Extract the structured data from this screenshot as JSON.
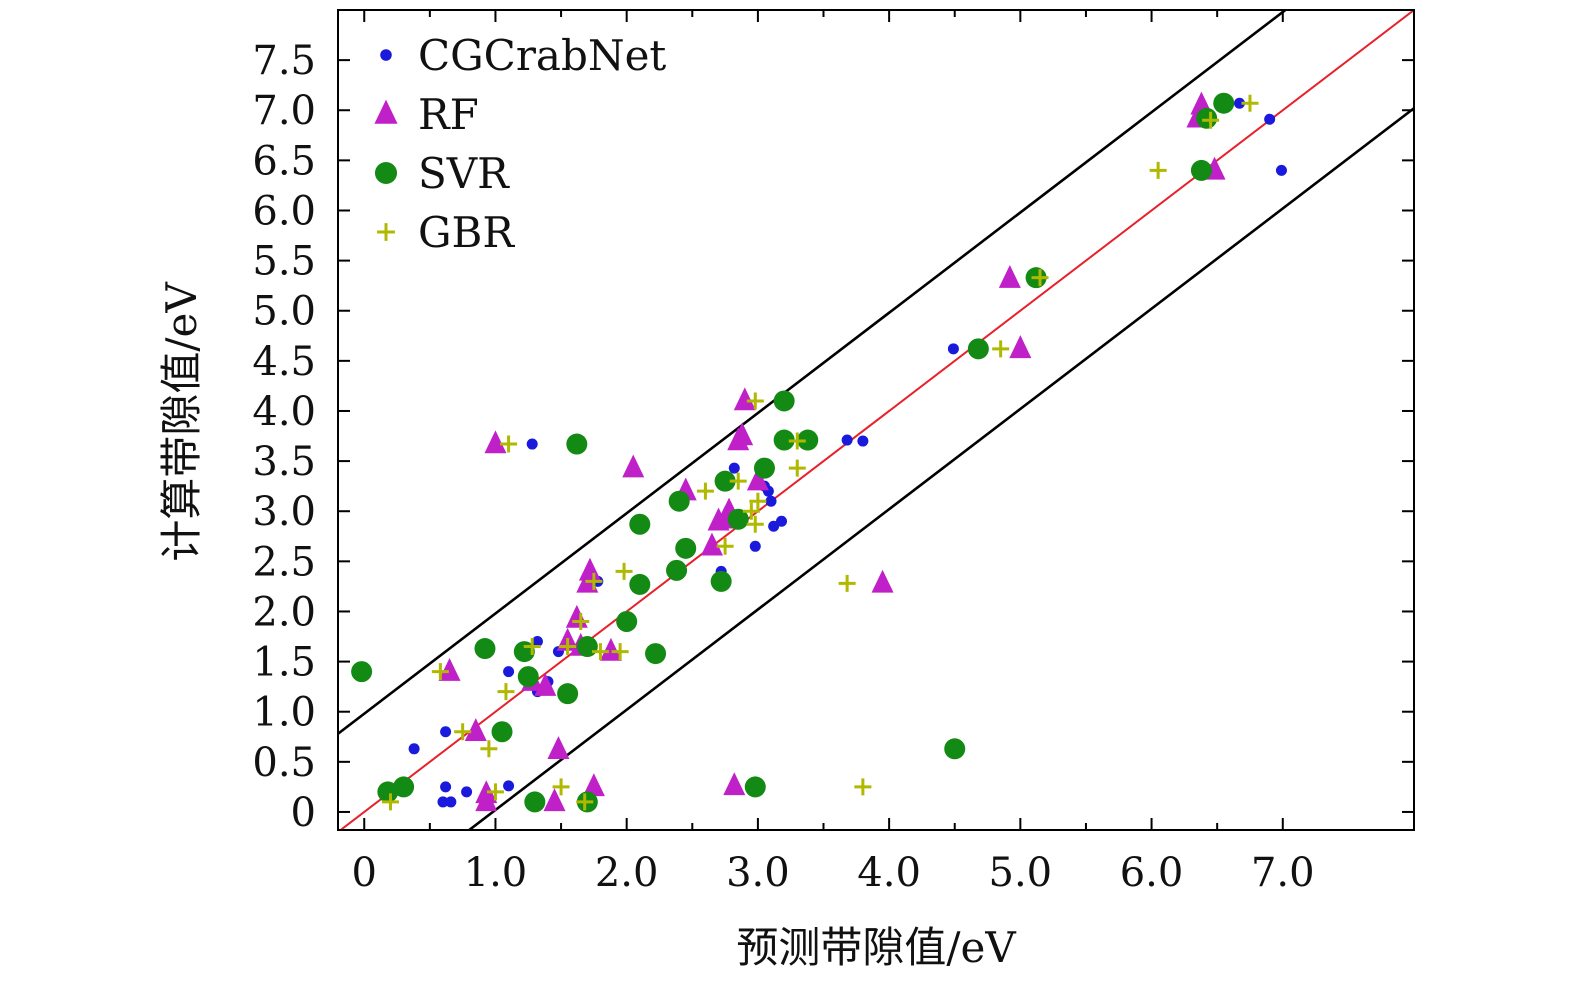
{
  "chart_data": {
    "type": "scatter",
    "xlabel": "预测带隙值/eV",
    "ylabel": "计算带隙值/eV",
    "xlim": [
      -0.2,
      8.0
    ],
    "ylim": [
      -0.18,
      8.0
    ],
    "x_ticks": [
      0,
      1.0,
      2.0,
      3.0,
      4.0,
      5.0,
      6.0,
      7.0
    ],
    "x_tick_labels": [
      "0",
      "1.0",
      "2.0",
      "3.0",
      "4.0",
      "5.0",
      "6.0",
      "7.0"
    ],
    "y_ticks": [
      0,
      0.5,
      1.0,
      1.5,
      2.0,
      2.5,
      3.0,
      3.5,
      4.0,
      4.5,
      5.0,
      5.5,
      6.0,
      6.5,
      7.0,
      7.5
    ],
    "y_tick_labels": [
      "0",
      "0.5",
      "1.0",
      "1.5",
      "2.0",
      "2.5",
      "3.0",
      "3.5",
      "4.0",
      "4.5",
      "5.0",
      "5.5",
      "6.0",
      "6.5",
      "7.0",
      "7.5"
    ],
    "legend_position": "top-left",
    "grid": false,
    "reference_lines": [
      {
        "name": "y=x",
        "slope": 1,
        "intercept": 0,
        "color": "#e8202a"
      },
      {
        "name": "upper bound",
        "slope": 1,
        "intercept": 0.98,
        "color": "#000000"
      },
      {
        "name": "lower bound",
        "slope": 1,
        "intercept": -0.98,
        "color": "#000000"
      }
    ],
    "series": [
      {
        "name": "CGCrabNet",
        "marker": "dot",
        "color": "#1a1adc",
        "points": [
          [
            0.38,
            0.63
          ],
          [
            0.6,
            0.1
          ],
          [
            0.62,
            0.25
          ],
          [
            0.66,
            0.1
          ],
          [
            0.62,
            0.8
          ],
          [
            0.78,
            0.2
          ],
          [
            1.1,
            0.26
          ],
          [
            1.1,
            1.4
          ],
          [
            1.28,
            3.67
          ],
          [
            1.32,
            1.7
          ],
          [
            1.32,
            1.2
          ],
          [
            1.4,
            1.3
          ],
          [
            1.48,
            1.6
          ],
          [
            1.78,
            2.3
          ],
          [
            2.72,
            2.4
          ],
          [
            2.82,
            3.43
          ],
          [
            2.98,
            2.65
          ],
          [
            3.05,
            3.25
          ],
          [
            3.08,
            3.2
          ],
          [
            3.1,
            3.1
          ],
          [
            3.12,
            2.85
          ],
          [
            3.18,
            2.9
          ],
          [
            3.68,
            3.71
          ],
          [
            3.8,
            3.7
          ],
          [
            4.49,
            4.62
          ],
          [
            6.67,
            7.07
          ],
          [
            6.9,
            6.91
          ],
          [
            6.99,
            6.4
          ]
        ]
      },
      {
        "name": "RF",
        "marker": "triangle",
        "color": "#c020c8",
        "points": [
          [
            0.65,
            1.4
          ],
          [
            0.85,
            0.8
          ],
          [
            0.93,
            0.18
          ],
          [
            0.93,
            0.1
          ],
          [
            1.0,
            3.67
          ],
          [
            1.28,
            1.3
          ],
          [
            1.38,
            1.25
          ],
          [
            1.45,
            0.1
          ],
          [
            1.48,
            0.62
          ],
          [
            1.55,
            1.7
          ],
          [
            1.62,
            1.93
          ],
          [
            1.65,
            1.65
          ],
          [
            1.7,
            2.28
          ],
          [
            1.72,
            2.4
          ],
          [
            1.75,
            0.25
          ],
          [
            1.88,
            1.6
          ],
          [
            2.05,
            3.43
          ],
          [
            2.45,
            3.2
          ],
          [
            2.65,
            2.65
          ],
          [
            2.7,
            2.9
          ],
          [
            2.75,
            2.92
          ],
          [
            2.78,
            3.0
          ],
          [
            2.82,
            0.26
          ],
          [
            2.85,
            3.7
          ],
          [
            2.88,
            3.75
          ],
          [
            2.9,
            4.1
          ],
          [
            3.0,
            3.3
          ],
          [
            3.95,
            2.28
          ],
          [
            4.92,
            5.32
          ],
          [
            5.0,
            4.62
          ],
          [
            6.35,
            6.92
          ],
          [
            6.38,
            7.05
          ],
          [
            6.48,
            6.4
          ]
        ]
      },
      {
        "name": "SVR",
        "marker": "circle",
        "color": "#138a13",
        "points": [
          [
            -0.02,
            1.4
          ],
          [
            0.18,
            0.2
          ],
          [
            0.3,
            0.25
          ],
          [
            0.92,
            1.63
          ],
          [
            1.05,
            0.8
          ],
          [
            1.22,
            1.6
          ],
          [
            1.25,
            1.35
          ],
          [
            1.3,
            0.1
          ],
          [
            1.55,
            1.18
          ],
          [
            1.62,
            3.67
          ],
          [
            1.7,
            1.65
          ],
          [
            1.7,
            0.1
          ],
          [
            2.0,
            1.9
          ],
          [
            2.1,
            2.87
          ],
          [
            2.1,
            2.27
          ],
          [
            2.22,
            1.58
          ],
          [
            2.38,
            2.41
          ],
          [
            2.4,
            3.1
          ],
          [
            2.45,
            2.63
          ],
          [
            2.72,
            2.3
          ],
          [
            2.75,
            3.3
          ],
          [
            2.85,
            2.92
          ],
          [
            2.98,
            0.25
          ],
          [
            3.05,
            3.43
          ],
          [
            3.2,
            4.1
          ],
          [
            3.2,
            3.71
          ],
          [
            3.38,
            3.71
          ],
          [
            4.5,
            0.63
          ],
          [
            4.68,
            4.62
          ],
          [
            5.12,
            5.33
          ],
          [
            6.38,
            6.4
          ],
          [
            6.42,
            6.92
          ],
          [
            6.55,
            7.07
          ]
        ]
      },
      {
        "name": "GBR",
        "marker": "plus",
        "color": "#b0b800",
        "points": [
          [
            0.2,
            0.1
          ],
          [
            0.58,
            1.4
          ],
          [
            0.75,
            0.8
          ],
          [
            0.95,
            0.63
          ],
          [
            1.0,
            0.2
          ],
          [
            1.08,
            1.2
          ],
          [
            1.1,
            3.67
          ],
          [
            1.28,
            1.65
          ],
          [
            1.5,
            0.25
          ],
          [
            1.55,
            1.65
          ],
          [
            1.65,
            1.9
          ],
          [
            1.68,
            0.1
          ],
          [
            1.75,
            2.3
          ],
          [
            1.8,
            1.6
          ],
          [
            1.95,
            1.6
          ],
          [
            1.98,
            2.4
          ],
          [
            2.6,
            3.2
          ],
          [
            2.75,
            2.65
          ],
          [
            2.85,
            3.3
          ],
          [
            2.95,
            3.0
          ],
          [
            2.98,
            2.87
          ],
          [
            2.98,
            4.1
          ],
          [
            3.0,
            3.1
          ],
          [
            3.3,
            3.43
          ],
          [
            3.3,
            3.7
          ],
          [
            3.68,
            2.28
          ],
          [
            3.8,
            0.25
          ],
          [
            4.85,
            4.62
          ],
          [
            5.15,
            5.33
          ],
          [
            6.05,
            6.4
          ],
          [
            6.45,
            6.9
          ],
          [
            6.75,
            7.07
          ]
        ]
      }
    ]
  }
}
